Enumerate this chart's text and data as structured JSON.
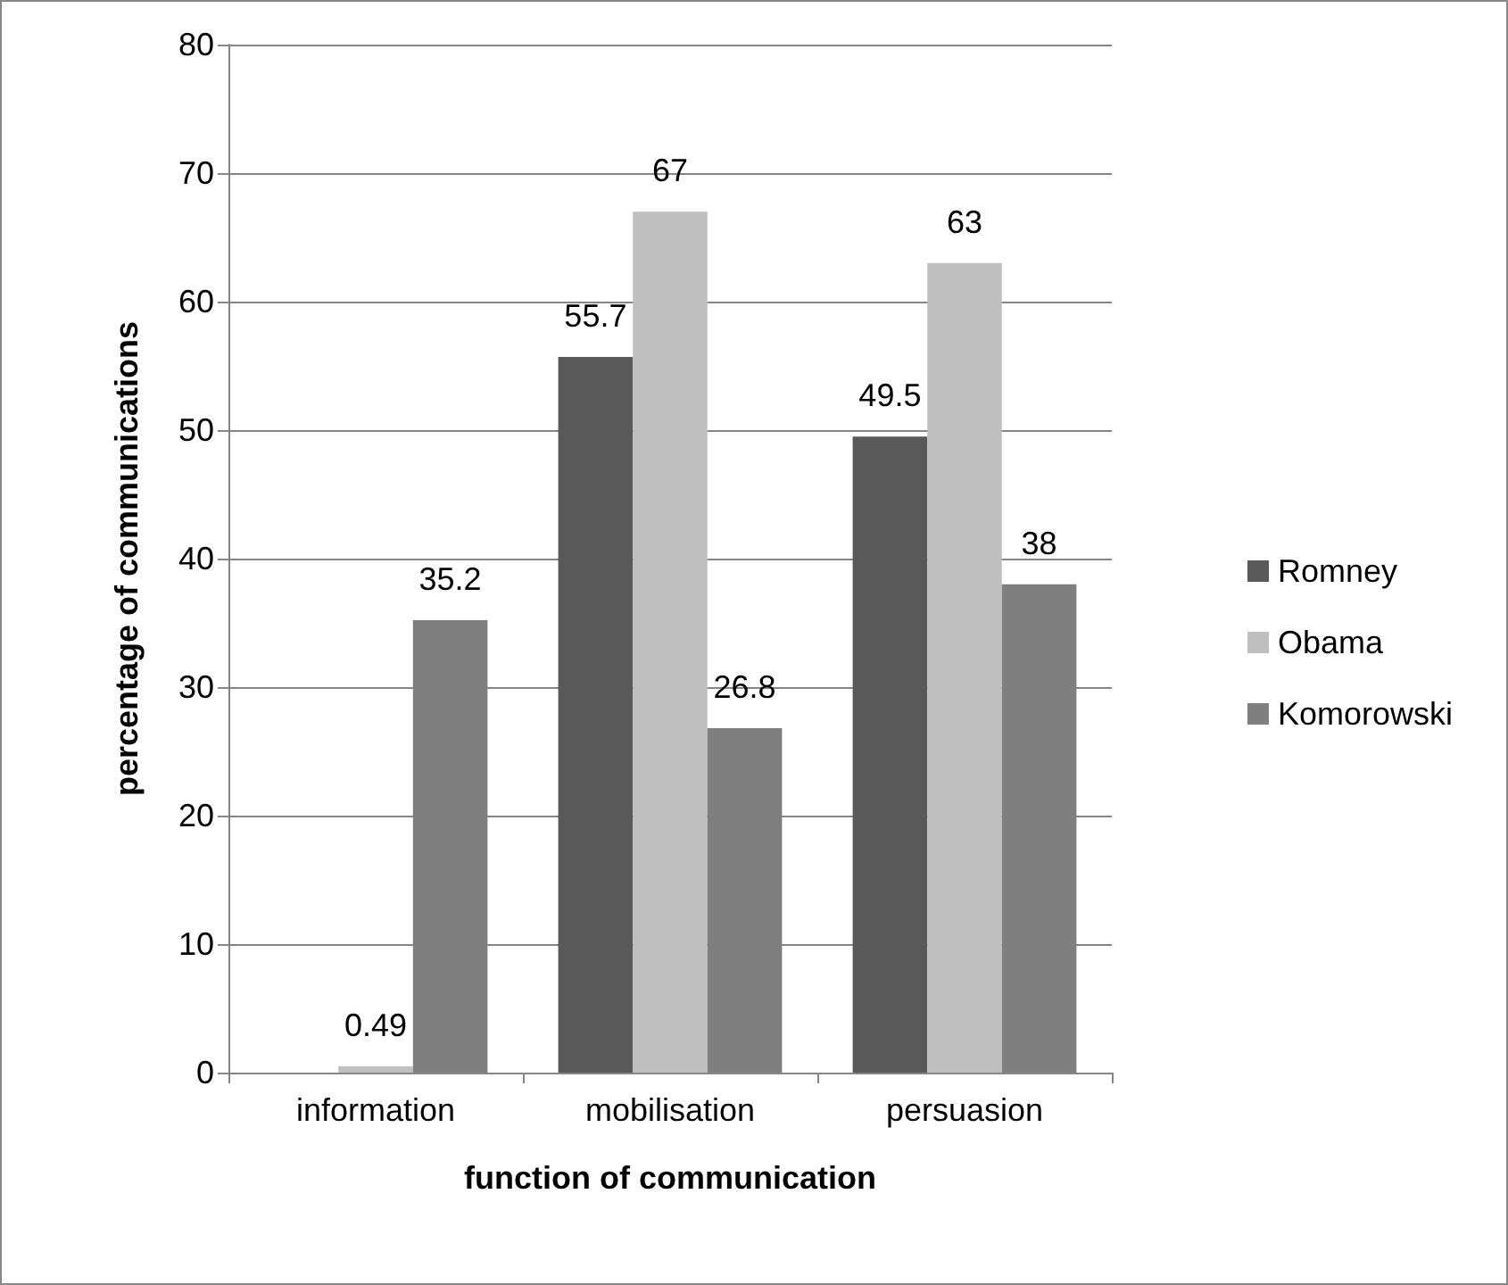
{
  "chart_data": {
    "type": "bar",
    "xlabel": "function of communication",
    "ylabel": "percentage of communications",
    "categories": [
      "information",
      "mobilisation",
      "persuasion"
    ],
    "series": [
      {
        "name": "Romney",
        "color": "#595959",
        "values": [
          null,
          55.7,
          49.5
        ]
      },
      {
        "name": "Obama",
        "color": "#bfbfbf",
        "values": [
          0.49,
          67,
          63
        ]
      },
      {
        "name": "Komorowski",
        "color": "#7f7f7f",
        "values": [
          35.2,
          26.8,
          38
        ]
      }
    ],
    "ylim": [
      0,
      80
    ],
    "yticks": [
      0,
      10,
      20,
      30,
      40,
      50,
      60,
      70,
      80
    ],
    "grid": "y",
    "legend": "right",
    "data_labels": true
  }
}
